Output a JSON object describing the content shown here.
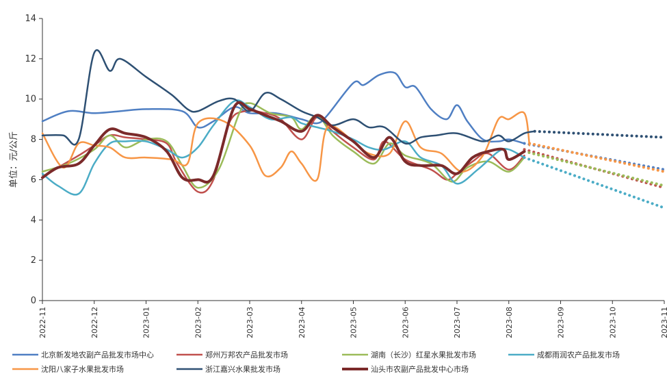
{
  "chart_data": {
    "type": "line",
    "title": "",
    "ylabel": "单位：元/公斤",
    "xlabel": "",
    "ylim": [
      0,
      14
    ],
    "yticks": [
      0,
      2,
      4,
      6,
      8,
      10,
      12,
      14
    ],
    "xlim": [
      0,
      12
    ],
    "xticks": [
      {
        "x": 0,
        "label": "2022-11"
      },
      {
        "x": 1,
        "label": "2022-12"
      },
      {
        "x": 2,
        "label": "2023-01"
      },
      {
        "x": 3,
        "label": "2023-02"
      },
      {
        "x": 4,
        "label": "2023-03"
      },
      {
        "x": 5,
        "label": "2023-04"
      },
      {
        "x": 6,
        "label": "2023-05"
      },
      {
        "x": 7,
        "label": "2023-06"
      },
      {
        "x": 8,
        "label": "2023-07"
      },
      {
        "x": 9,
        "label": "2023-08"
      },
      {
        "x": 10,
        "label": "2023-09"
      },
      {
        "x": 11,
        "label": "2023-10"
      },
      {
        "x": 12,
        "label": "2023-11"
      }
    ],
    "x_unit": "months since 2022-11",
    "grid": false,
    "legend_position": "bottom",
    "series": [
      {
        "name": "北京新发地农副产品批发市场中心",
        "color": "#4f7fc3",
        "width": 2.5,
        "values": [
          [
            0,
            8.9
          ],
          [
            0.5,
            9.4
          ],
          [
            1,
            9.3
          ],
          [
            1.5,
            9.4
          ],
          [
            2,
            9.5
          ],
          [
            2.7,
            9.4
          ],
          [
            3,
            8.6
          ],
          [
            3.3,
            8.9
          ],
          [
            3.7,
            9.6
          ],
          [
            4,
            9.3
          ],
          [
            4.5,
            9.3
          ],
          [
            5,
            9.0
          ],
          [
            5.3,
            8.8
          ],
          [
            5.5,
            9.2
          ],
          [
            6,
            10.8
          ],
          [
            6.2,
            10.7
          ],
          [
            6.5,
            11.2
          ],
          [
            6.8,
            11.3
          ],
          [
            7,
            10.6
          ],
          [
            7.2,
            10.6
          ],
          [
            7.5,
            9.5
          ],
          [
            7.8,
            9.0
          ],
          [
            8,
            9.7
          ],
          [
            8.2,
            8.9
          ],
          [
            8.5,
            8.0
          ],
          [
            8.8,
            7.9
          ],
          [
            9,
            8.0
          ],
          [
            9.3,
            7.8
          ]
        ],
        "forecast": [
          [
            9.3,
            7.8
          ],
          [
            12,
            6.5
          ]
        ]
      },
      {
        "name": "郑州万邦农产品批发市场",
        "color": "#c0504d",
        "width": 2.5,
        "values": [
          [
            0,
            6.1
          ],
          [
            0.3,
            6.6
          ],
          [
            0.7,
            7.2
          ],
          [
            1,
            7.7
          ],
          [
            1.3,
            8.2
          ],
          [
            1.6,
            8.1
          ],
          [
            2,
            8.0
          ],
          [
            2.4,
            7.8
          ],
          [
            2.6,
            6.8
          ],
          [
            3,
            5.4
          ],
          [
            3.3,
            6.0
          ],
          [
            3.6,
            8.8
          ],
          [
            3.9,
            9.4
          ],
          [
            4.3,
            9.3
          ],
          [
            4.6,
            9.0
          ],
          [
            5,
            8.0
          ],
          [
            5.3,
            9.1
          ],
          [
            5.6,
            8.4
          ],
          [
            6,
            7.6
          ],
          [
            6.4,
            7.0
          ],
          [
            6.6,
            7.9
          ],
          [
            7,
            7.0
          ],
          [
            7.5,
            6.5
          ],
          [
            7.8,
            6.0
          ],
          [
            8,
            6.3
          ],
          [
            8.3,
            6.9
          ],
          [
            8.6,
            7.3
          ],
          [
            9,
            6.5
          ],
          [
            9.3,
            7.2
          ]
        ],
        "forecast": [
          [
            9.3,
            7.5
          ],
          [
            12,
            5.6
          ]
        ]
      },
      {
        "name": "湖南（长沙）红星水果批发市场",
        "color": "#9bbb59",
        "width": 2.5,
        "values": [
          [
            0,
            6.4
          ],
          [
            0.5,
            6.8
          ],
          [
            1,
            7.5
          ],
          [
            1.3,
            8.2
          ],
          [
            1.6,
            7.6
          ],
          [
            2,
            8.0
          ],
          [
            2.4,
            7.9
          ],
          [
            2.7,
            6.7
          ],
          [
            3,
            5.6
          ],
          [
            3.4,
            6.5
          ],
          [
            3.8,
            9.3
          ],
          [
            4,
            9.8
          ],
          [
            4.4,
            9.3
          ],
          [
            4.8,
            9.1
          ],
          [
            5,
            8.5
          ],
          [
            5.3,
            9.2
          ],
          [
            5.6,
            8.2
          ],
          [
            6,
            7.4
          ],
          [
            6.4,
            6.8
          ],
          [
            6.7,
            7.8
          ],
          [
            7,
            7.2
          ],
          [
            7.5,
            6.8
          ],
          [
            7.9,
            5.9
          ],
          [
            8.2,
            6.6
          ],
          [
            8.6,
            6.9
          ],
          [
            9,
            6.4
          ],
          [
            9.3,
            7.1
          ]
        ],
        "forecast": [
          [
            9.3,
            7.4
          ],
          [
            12,
            5.7
          ]
        ]
      },
      {
        "name": "成都雨润农产品批发市场",
        "color": "#4bacc6",
        "width": 2.5,
        "values": [
          [
            0,
            6.3
          ],
          [
            0.3,
            5.7
          ],
          [
            0.7,
            5.3
          ],
          [
            1,
            6.8
          ],
          [
            1.3,
            7.8
          ],
          [
            1.6,
            7.9
          ],
          [
            2,
            7.9
          ],
          [
            2.4,
            7.5
          ],
          [
            2.7,
            7.1
          ],
          [
            3,
            7.6
          ],
          [
            3.3,
            8.7
          ],
          [
            3.7,
            9.9
          ],
          [
            4,
            9.6
          ],
          [
            4.4,
            9.0
          ],
          [
            4.8,
            9.1
          ],
          [
            5,
            8.8
          ],
          [
            5.3,
            8.6
          ],
          [
            5.6,
            8.4
          ],
          [
            6,
            8.0
          ],
          [
            6.3,
            7.6
          ],
          [
            6.6,
            7.5
          ],
          [
            7,
            7.9
          ],
          [
            7.3,
            7.1
          ],
          [
            7.7,
            6.7
          ],
          [
            8,
            5.8
          ],
          [
            8.4,
            6.5
          ],
          [
            8.8,
            7.4
          ],
          [
            9,
            7.5
          ],
          [
            9.3,
            7.1
          ]
        ],
        "forecast": [
          [
            9.3,
            7.1
          ],
          [
            12,
            4.6
          ]
        ]
      },
      {
        "name": "沈阳八家子水果批发市场",
        "color": "#f79646",
        "width": 2.5,
        "values": [
          [
            0,
            8.3
          ],
          [
            0.4,
            6.6
          ],
          [
            0.7,
            7.8
          ],
          [
            1,
            7.7
          ],
          [
            1.3,
            7.6
          ],
          [
            1.6,
            7.1
          ],
          [
            2,
            7.1
          ],
          [
            2.5,
            7.0
          ],
          [
            2.8,
            6.8
          ],
          [
            3,
            8.8
          ],
          [
            3.5,
            8.9
          ],
          [
            4,
            7.7
          ],
          [
            4.3,
            6.2
          ],
          [
            4.6,
            6.6
          ],
          [
            4.8,
            7.4
          ],
          [
            5,
            6.8
          ],
          [
            5.3,
            6.0
          ],
          [
            5.5,
            8.6
          ],
          [
            6,
            7.9
          ],
          [
            6.3,
            7.3
          ],
          [
            6.7,
            7.3
          ],
          [
            7,
            8.9
          ],
          [
            7.3,
            7.6
          ],
          [
            7.7,
            7.3
          ],
          [
            8.1,
            6.4
          ],
          [
            8.5,
            7.2
          ],
          [
            8.8,
            9.0
          ],
          [
            9,
            9.0
          ],
          [
            9.3,
            9.3
          ],
          [
            9.4,
            7.7
          ]
        ],
        "forecast": [
          [
            9.4,
            7.8
          ],
          [
            12,
            6.4
          ]
        ]
      },
      {
        "name": "浙江嘉兴水果批发市场",
        "color": "#2e5073",
        "width": 2.5,
        "values": [
          [
            0,
            8.2
          ],
          [
            0.4,
            8.2
          ],
          [
            0.7,
            8.0
          ],
          [
            1,
            12.3
          ],
          [
            1.3,
            11.4
          ],
          [
            1.5,
            12.0
          ],
          [
            2,
            11.1
          ],
          [
            2.5,
            10.2
          ],
          [
            2.8,
            9.5
          ],
          [
            3,
            9.4
          ],
          [
            3.4,
            9.9
          ],
          [
            3.7,
            10.0
          ],
          [
            4,
            9.4
          ],
          [
            4.3,
            10.3
          ],
          [
            4.6,
            10.0
          ],
          [
            5,
            9.4
          ],
          [
            5.3,
            9.1
          ],
          [
            5.6,
            8.7
          ],
          [
            6,
            9.0
          ],
          [
            6.3,
            8.6
          ],
          [
            6.6,
            8.6
          ],
          [
            7,
            7.8
          ],
          [
            7.3,
            8.1
          ],
          [
            7.6,
            8.2
          ],
          [
            8,
            8.3
          ],
          [
            8.5,
            7.9
          ],
          [
            8.8,
            8.2
          ],
          [
            9,
            7.9
          ],
          [
            9.3,
            8.3
          ],
          [
            9.5,
            8.4
          ]
        ],
        "forecast": [
          [
            9.5,
            8.4
          ],
          [
            12,
            8.1
          ]
        ]
      },
      {
        "name": "汕头市农副产品批发中心市场",
        "color": "#7b2a2a",
        "width": 4,
        "values": [
          [
            0,
            6.1
          ],
          [
            0.3,
            6.6
          ],
          [
            0.7,
            6.8
          ],
          [
            1,
            7.7
          ],
          [
            1.3,
            8.5
          ],
          [
            1.6,
            8.3
          ],
          [
            2,
            8.1
          ],
          [
            2.4,
            7.4
          ],
          [
            2.7,
            6.1
          ],
          [
            3,
            6.0
          ],
          [
            3.3,
            6.2
          ],
          [
            3.7,
            9.6
          ],
          [
            4,
            9.5
          ],
          [
            4.3,
            9.2
          ],
          [
            4.6,
            8.9
          ],
          [
            5,
            8.4
          ],
          [
            5.3,
            9.2
          ],
          [
            5.6,
            8.6
          ],
          [
            6,
            7.9
          ],
          [
            6.4,
            7.1
          ],
          [
            6.7,
            8.1
          ],
          [
            7,
            6.9
          ],
          [
            7.3,
            6.7
          ],
          [
            7.7,
            6.7
          ],
          [
            8,
            6.3
          ],
          [
            8.3,
            7.1
          ],
          [
            8.6,
            7.4
          ],
          [
            8.9,
            7.5
          ],
          [
            9,
            7.0
          ],
          [
            9.3,
            7.4
          ]
        ],
        "forecast": []
      }
    ]
  }
}
